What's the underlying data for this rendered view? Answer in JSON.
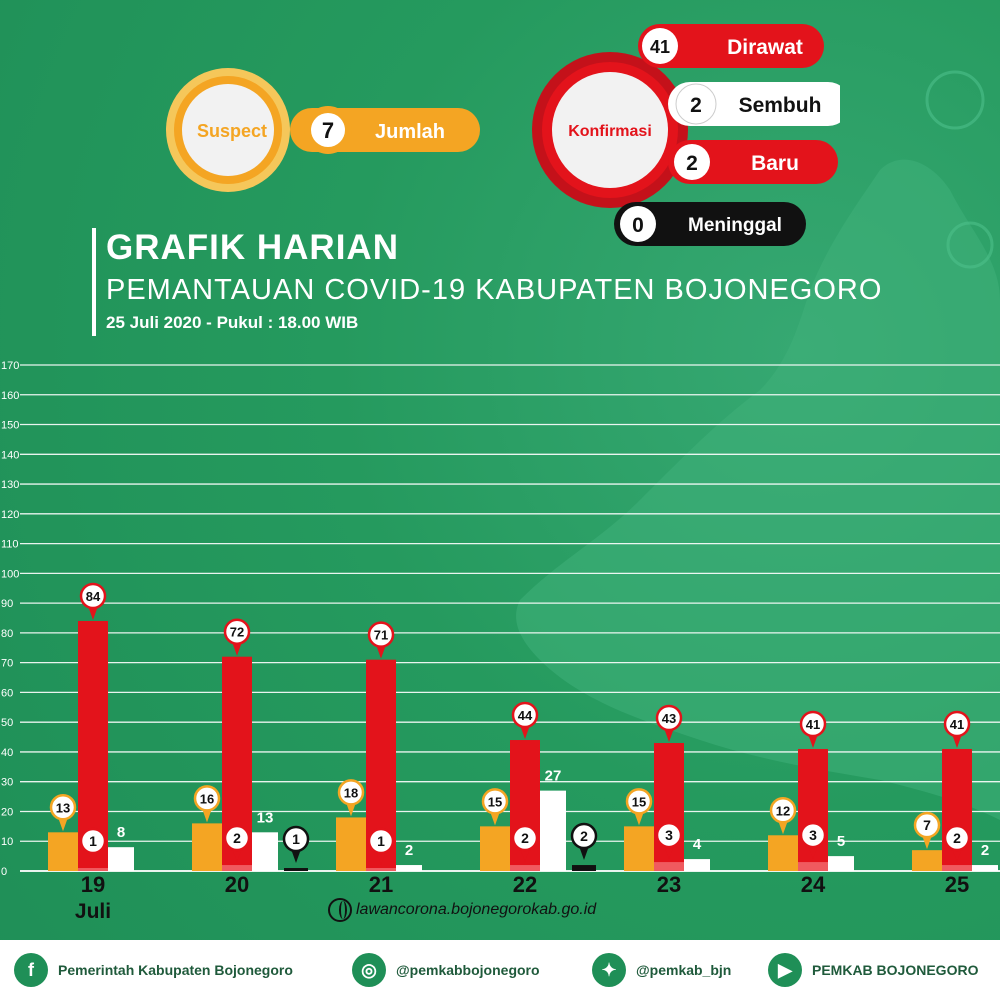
{
  "header": {
    "title": "GRAFIK HARIAN",
    "subtitle": "PEMANTAUAN COVID-19 KABUPATEN BOJONEGORO",
    "date": "25 Juli 2020 - Pukul : 18.00 WIB"
  },
  "suspect": {
    "label": "Suspect",
    "value": "7",
    "value_label": "Jumlah"
  },
  "konfirmasi": {
    "label": "Konfirmasi",
    "items": [
      {
        "value": "41",
        "label": "Dirawat",
        "color": "#e3131b"
      },
      {
        "value": "2",
        "label": "Sembuh",
        "color": "#ffffff"
      },
      {
        "value": "2",
        "label": "Baru",
        "color": "#e3131b"
      },
      {
        "value": "0",
        "label": "Meninggal",
        "color": "#111111"
      }
    ]
  },
  "chart_data": {
    "type": "bar",
    "categories": [
      "19",
      "20",
      "21",
      "22",
      "23",
      "24",
      "25"
    ],
    "month_label": "Juli",
    "ylim": [
      0,
      170
    ],
    "yticks": [
      0,
      10,
      20,
      30,
      40,
      50,
      60,
      70,
      80,
      90,
      100,
      110,
      120,
      130,
      140,
      150,
      160,
      170
    ],
    "grid": true,
    "series": [
      {
        "key": "suspect",
        "values": [
          13,
          16,
          18,
          15,
          15,
          12,
          7
        ],
        "color": "#f4a523"
      },
      {
        "key": "dirawat",
        "values": [
          84,
          72,
          71,
          44,
          43,
          41,
          41
        ],
        "color": "#e3131b"
      },
      {
        "key": "baru",
        "values": [
          1,
          2,
          1,
          2,
          3,
          3,
          2
        ],
        "color": "#f05a5f"
      },
      {
        "key": "sembuh",
        "values": [
          8,
          13,
          2,
          27,
          4,
          5,
          2
        ],
        "color": "#ffffff"
      },
      {
        "key": "meninggal",
        "values": [
          null,
          1,
          null,
          2,
          null,
          null,
          null
        ],
        "color": "#111111"
      }
    ]
  },
  "website": "lawancorona.bojonegorokab.go.id",
  "footer": [
    {
      "icon": "facebook-icon",
      "glyph": "f",
      "label": "Pemerintah Kabupaten Bojonegoro"
    },
    {
      "icon": "instagram-icon",
      "glyph": "◎",
      "label": "@pemkabbojonegoro"
    },
    {
      "icon": "twitter-icon",
      "glyph": "✦",
      "label": "@pemkab_bjn"
    },
    {
      "icon": "youtube-icon",
      "glyph": "▶",
      "label": "PEMKAB BOJONEGORO"
    }
  ],
  "colors": {
    "background": "#2a9a62",
    "accent_red": "#e3131b",
    "accent_orange": "#f4a523"
  }
}
